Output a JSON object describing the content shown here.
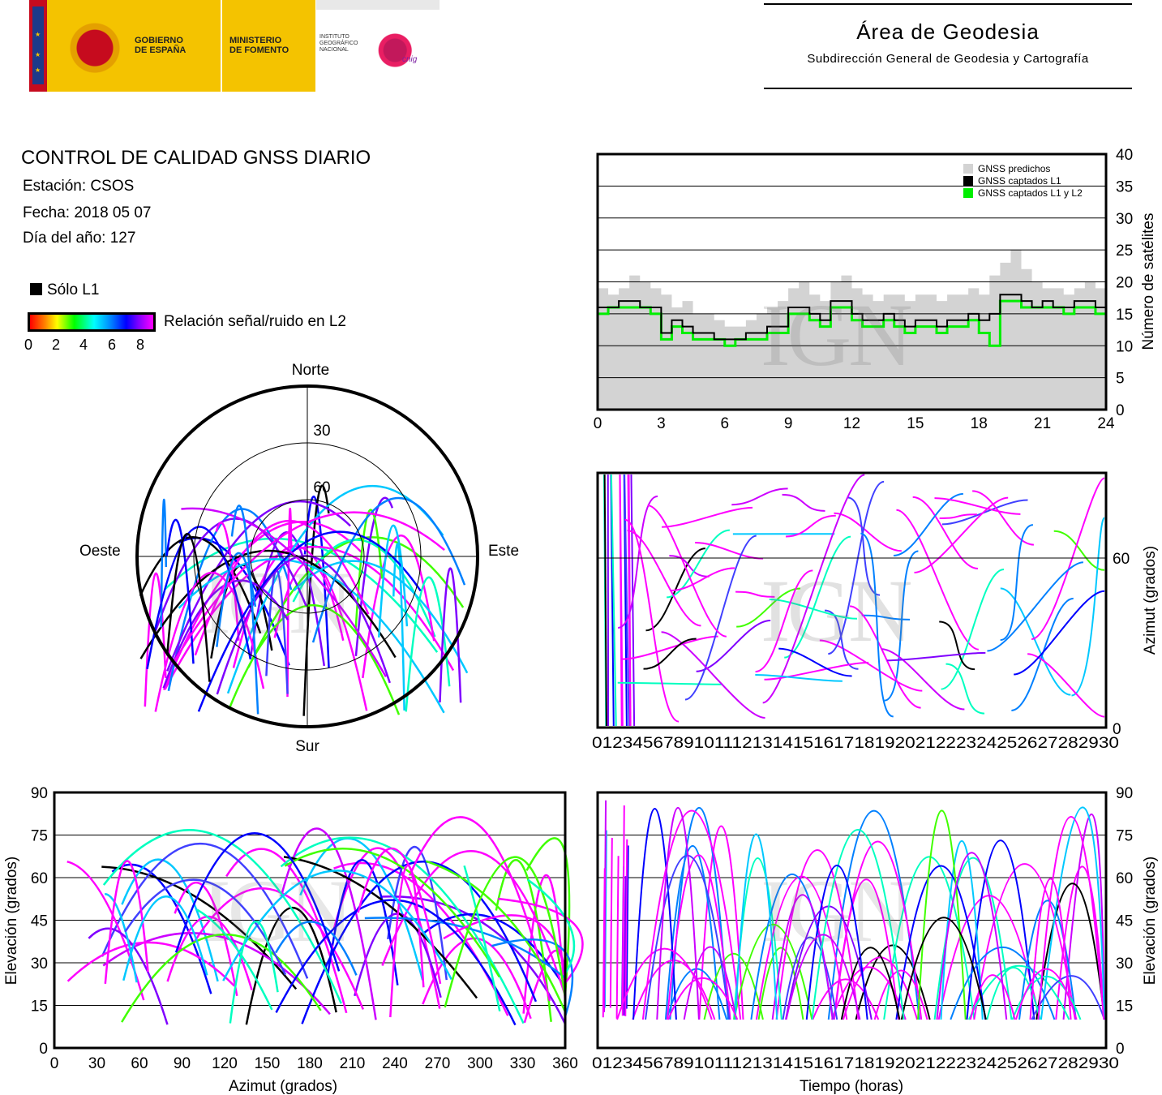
{
  "header": {
    "logo_gobierno": [
      "GOBIERNO",
      "DE ESPAÑA"
    ],
    "logo_ministerio": [
      "MINISTERIO",
      "DE FOMENTO"
    ],
    "logo_instituto": [
      "INSTITUTO",
      "GEOGRÁFICO",
      "NACIONAL"
    ],
    "logo_cnig": "cnig",
    "area_title": "Área de Geodesia",
    "area_subtitle": "Subdirección General de Geodesia y Cartografía"
  },
  "info": {
    "title": "CONTROL DE CALIDAD GNSS DIARIO",
    "station": "Estación: CSOS",
    "date": "Fecha: 2018 05 07",
    "doy": "Día del año: 127"
  },
  "legend": {
    "l1_only": "Sólo L1",
    "snr_label": "Relación señal/ruido en L2",
    "snr_ticks": [
      "0",
      "2",
      "4",
      "6",
      "8"
    ]
  },
  "watermark": "IGN",
  "colors": {
    "predicted": "#d3d3d3",
    "l1": "#000000",
    "l1l2": "#00ee00",
    "snr_high": "#ff00ff"
  },
  "chart_data": [
    {
      "id": "satellite-count",
      "type": "area",
      "ylabel": "Número de satélites",
      "xlim": [
        0,
        24
      ],
      "ylim": [
        0,
        40
      ],
      "xticks": [
        0,
        3,
        6,
        9,
        12,
        15,
        18,
        21,
        24
      ],
      "yticks": [
        0,
        5,
        10,
        15,
        20,
        25,
        30,
        35,
        40
      ],
      "legend": [
        "GNSS predichos",
        "GNSS captados L1",
        "GNSS captados L1 y L2"
      ],
      "legend_position": "top-right",
      "grid": "horizontal",
      "x": [
        0,
        0.5,
        1,
        1.5,
        2,
        2.5,
        3,
        3.5,
        4,
        4.5,
        5,
        5.5,
        6,
        6.5,
        7,
        7.5,
        8,
        8.5,
        9,
        9.5,
        10,
        10.5,
        11,
        11.5,
        12,
        12.5,
        13,
        13.5,
        14,
        14.5,
        15,
        15.5,
        16,
        16.5,
        17,
        17.5,
        18,
        18.5,
        19,
        19.5,
        20,
        20.5,
        21,
        21.5,
        22,
        22.5,
        23,
        23.5,
        24
      ],
      "series": [
        {
          "name": "GNSS predichos",
          "values": [
            19,
            18,
            19,
            21,
            20,
            19,
            18,
            16,
            17,
            15,
            15,
            14,
            13,
            13,
            14,
            15,
            16,
            17,
            19,
            20,
            18,
            17,
            20,
            21,
            19,
            18,
            17,
            18,
            18,
            17,
            18,
            18,
            17,
            18,
            18,
            19,
            18,
            21,
            23,
            25,
            22,
            20,
            19,
            19,
            18,
            19,
            20,
            19,
            18
          ]
        },
        {
          "name": "GNSS captados L1",
          "values": [
            16,
            16,
            17,
            17,
            16,
            16,
            12,
            14,
            13,
            12,
            12,
            11,
            11,
            11,
            12,
            12,
            13,
            13,
            16,
            16,
            15,
            14,
            17,
            17,
            15,
            14,
            14,
            15,
            14,
            13,
            14,
            14,
            13,
            14,
            14,
            15,
            14,
            15,
            18,
            18,
            17,
            16,
            17,
            16,
            16,
            17,
            17,
            16,
            16
          ]
        },
        {
          "name": "GNSS captados L1 y L2",
          "values": [
            15,
            16,
            16,
            16,
            16,
            15,
            11,
            13,
            12,
            11,
            11,
            11,
            10,
            11,
            11,
            11,
            12,
            12,
            15,
            15,
            14,
            13,
            16,
            16,
            14,
            13,
            13,
            14,
            13,
            12,
            13,
            13,
            12,
            13,
            13,
            14,
            12,
            10,
            17,
            17,
            16,
            16,
            16,
            16,
            15,
            16,
            16,
            15,
            14
          ]
        }
      ]
    },
    {
      "id": "skyplot",
      "type": "scatter",
      "labels": {
        "north": "Norte",
        "south": "Sur",
        "west": "Oeste",
        "east": "Este"
      },
      "elevation_rings": [
        "30",
        "60"
      ]
    },
    {
      "id": "azimuth-time",
      "type": "line",
      "ylabel": "Azimut (grados)",
      "ytick_labels": [
        "0",
        "60"
      ],
      "xtick_labels": "0123456789101112131415161718192021222324252627282930"
    },
    {
      "id": "elevation-azimuth",
      "type": "scatter",
      "xlabel": "Azimut (grados)",
      "ylabel": "Elevación (grados)",
      "xlim": [
        0,
        360
      ],
      "ylim": [
        0,
        90
      ],
      "xticks": [
        0,
        30,
        60,
        90,
        120,
        150,
        180,
        210,
        240,
        270,
        300,
        330,
        360
      ],
      "yticks": [
        0,
        15,
        30,
        45,
        60,
        75,
        90
      ]
    },
    {
      "id": "elevation-time",
      "type": "line",
      "xlabel": "Tiempo (horas)",
      "ylabel": "Elevación (grados)",
      "ylim": [
        0,
        90
      ],
      "yticks": [
        0,
        15,
        30,
        45,
        60,
        75,
        90
      ],
      "xtick_labels": "0123456789101112131415161718192021222324252627282930"
    }
  ]
}
